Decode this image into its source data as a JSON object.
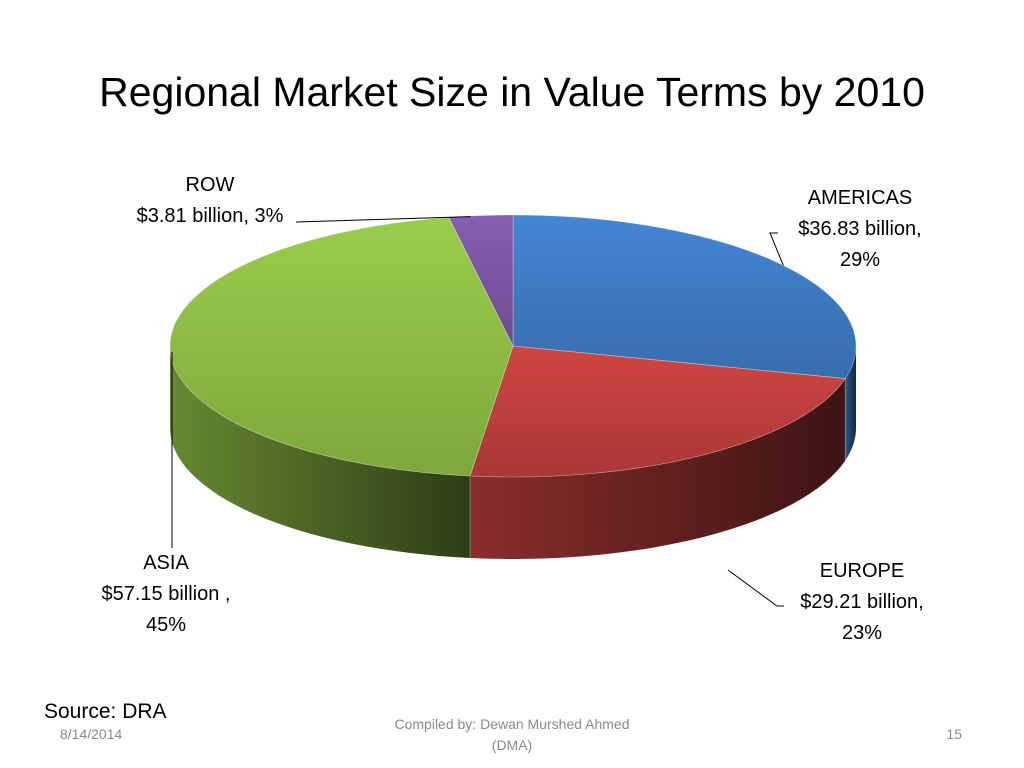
{
  "slide": {
    "title": "Regional Market Size in Value Terms by 2010",
    "source": "Source: DRA",
    "footer": {
      "date": "8/14/2014",
      "compiled_line1": "Compiled by: Dewan Murshed Ahmed",
      "compiled_line2": "(DMA)",
      "page_number": "15"
    }
  },
  "chart_data": {
    "type": "pie",
    "title": "Regional Market Size in Value Terms by 2010",
    "style": "3d",
    "unit": "billion",
    "slices": [
      {
        "name": "AMERICAS",
        "value": 36.83,
        "percent": 29,
        "label_name": "AMERICAS",
        "label_line2": "$36.83 billion,",
        "label_line3": "29%",
        "color": "#3f7cc4"
      },
      {
        "name": "EUROPE",
        "value": 29.21,
        "percent": 23,
        "label_name": "EUROPE",
        "label_line2": "$29.21 billion,",
        "label_line3": "23%",
        "color": "#c0403d"
      },
      {
        "name": "ASIA",
        "value": 57.15,
        "percent": 45,
        "label_name": "ASIA",
        "label_line2": "$57.15 billion ,",
        "label_line3": "45%",
        "color": "#8fbe45"
      },
      {
        "name": "ROW",
        "value": 3.81,
        "percent": 3,
        "label_name": "ROW",
        "label_line2": "$3.81 billion, 3%",
        "label_line3": "",
        "color": "#7d58a6"
      }
    ],
    "legend": "none"
  }
}
